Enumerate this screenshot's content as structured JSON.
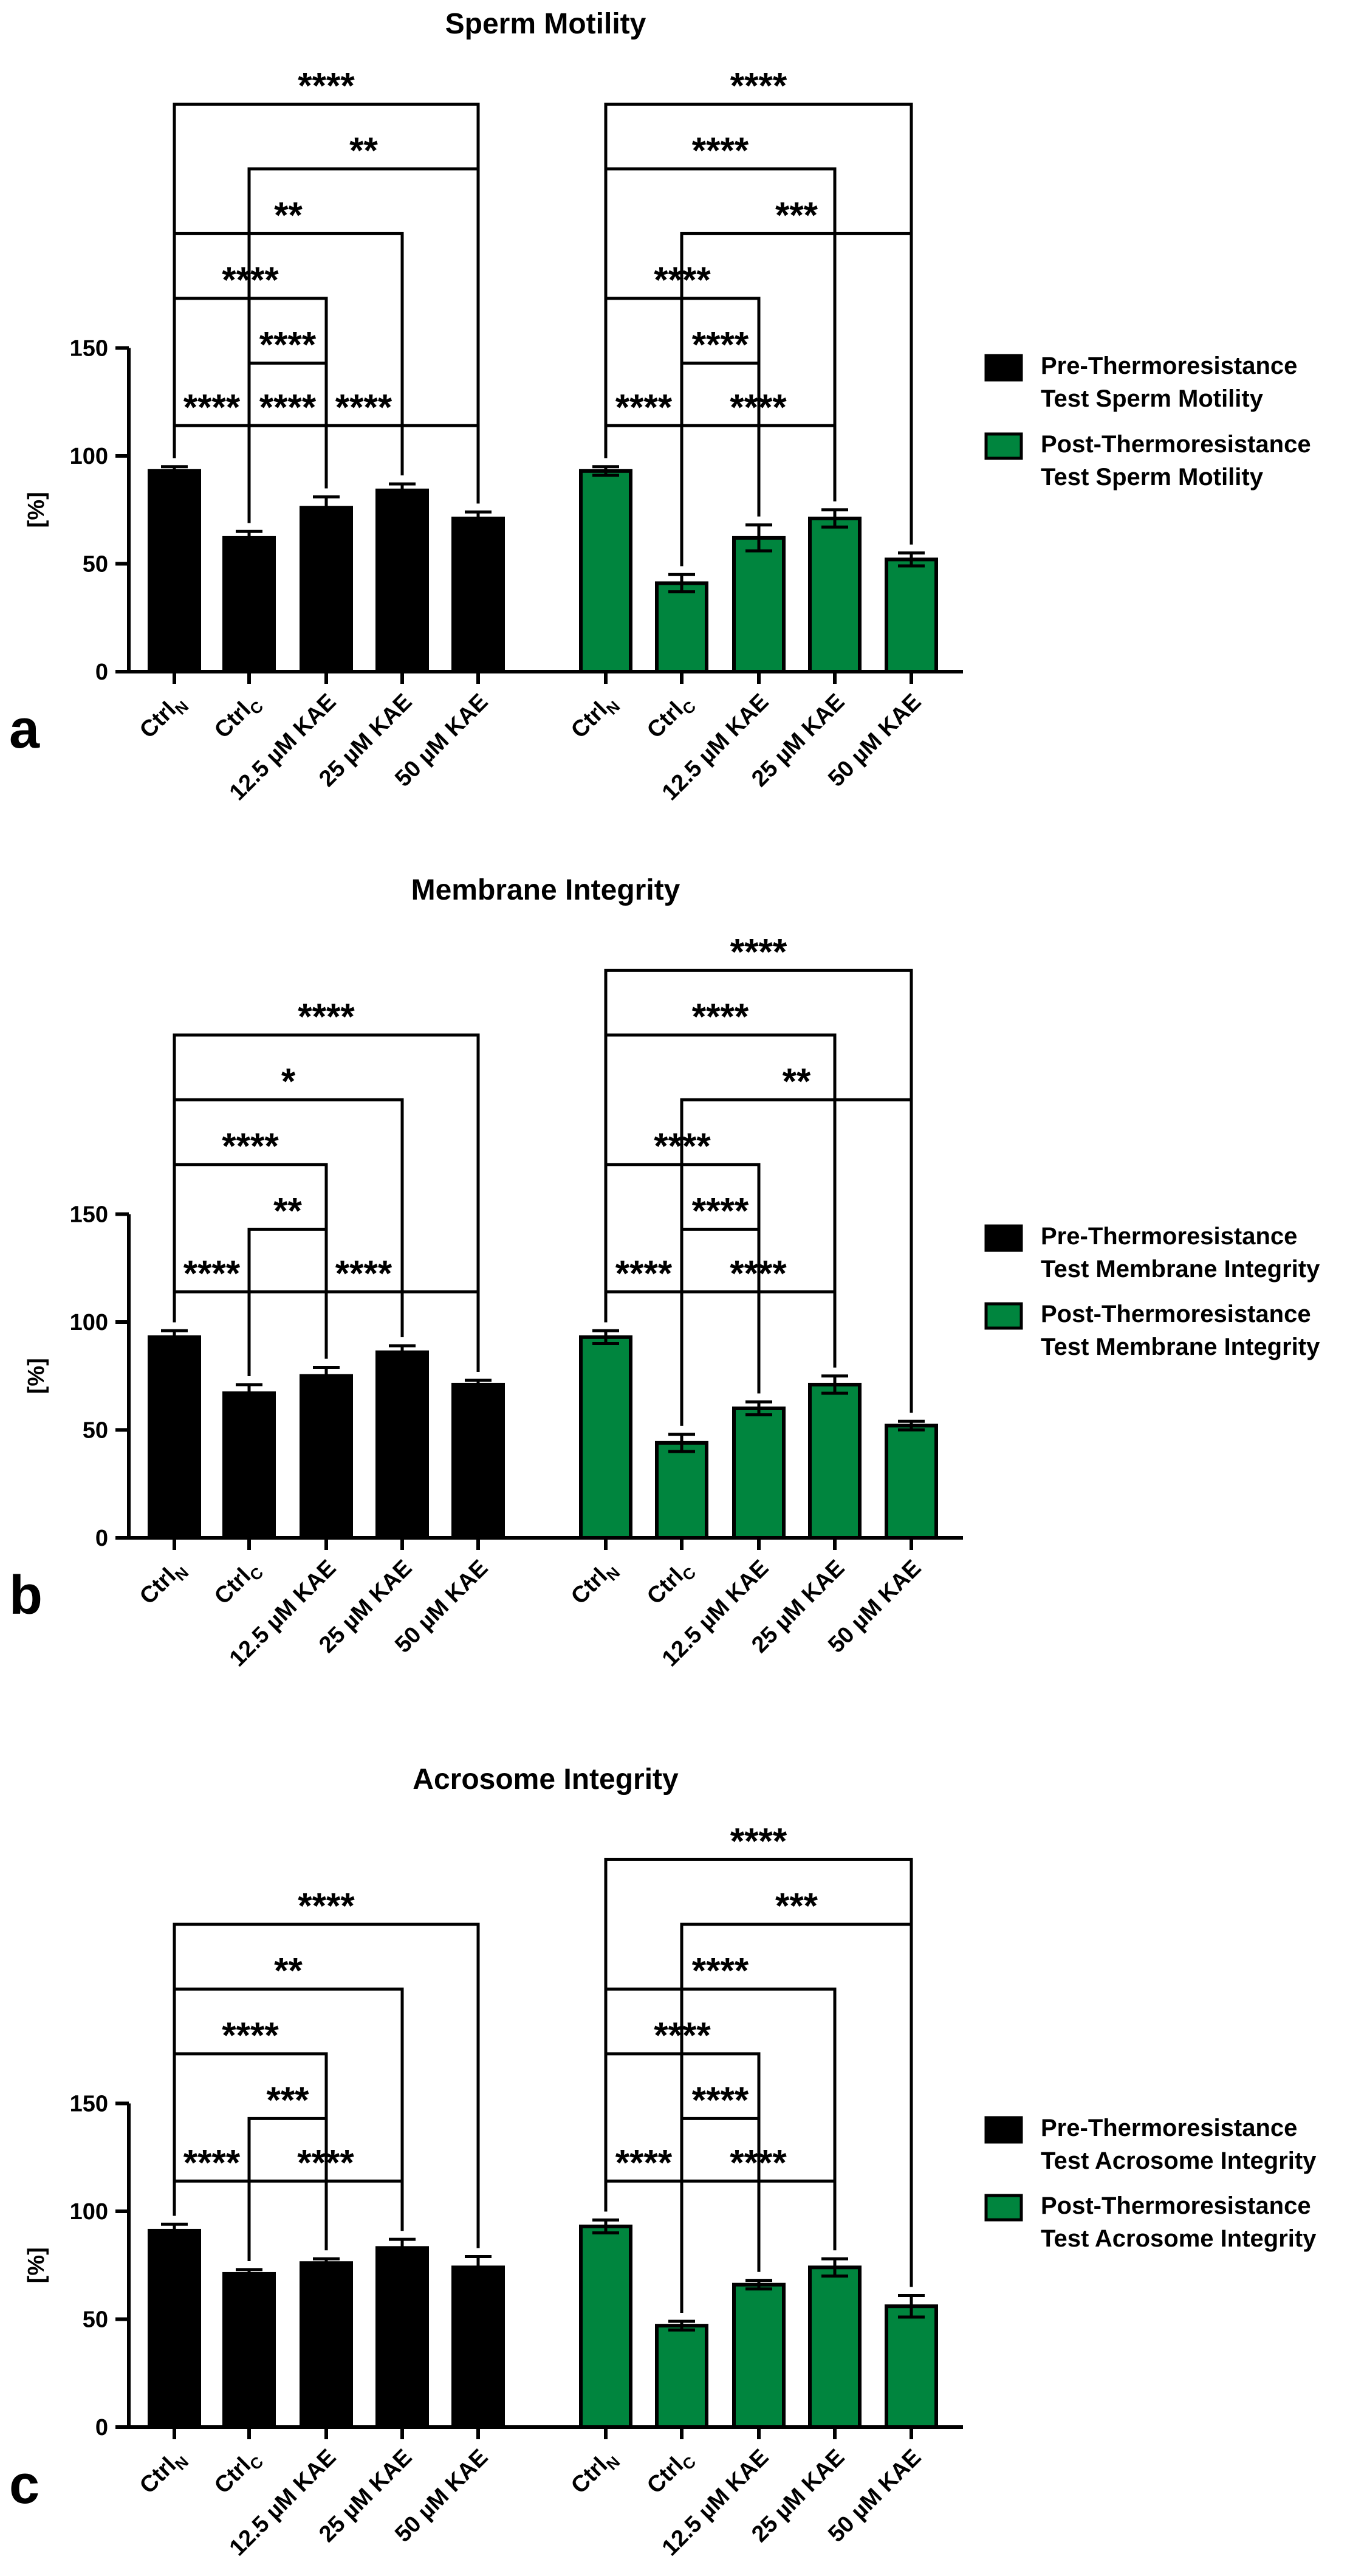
{
  "chart_data": [
    {
      "type": "bar",
      "panel_label": "a",
      "title": "Sperm Motility",
      "ylabel": "[%]",
      "ylim": [
        0,
        150
      ],
      "yticks": [
        "0",
        "50",
        "100",
        "150"
      ],
      "categories": [
        {
          "base": "Ctrl",
          "sub": "N"
        },
        {
          "base": "Ctrl",
          "sub": "C"
        },
        {
          "base": "12.5 µM KAE",
          "sub": ""
        },
        {
          "base": "25 µM KAE",
          "sub": ""
        },
        {
          "base": "50 µM KAE",
          "sub": ""
        }
      ],
      "series": [
        {
          "name": "Pre-Thermoresistance Test Sperm Motility",
          "legend_lines": [
            "Pre-Thermoresistance",
            "Test Sperm Motility"
          ],
          "color": "#000000",
          "values": [
            93,
            62,
            76,
            84,
            71
          ],
          "errors": [
            2,
            3,
            5,
            3,
            3
          ],
          "brackets": [
            {
              "from": 1,
              "to": 2,
              "y": 114,
              "label": "****"
            },
            {
              "from": 1,
              "to": 4,
              "y": 114,
              "label": "****"
            },
            {
              "from": 0,
              "to": 1,
              "y": 114,
              "label": "****"
            },
            {
              "from": 1,
              "to": 2,
              "y": 143,
              "label": "****"
            },
            {
              "from": 0,
              "to": 2,
              "y": 173,
              "label": "****"
            },
            {
              "from": 0,
              "to": 3,
              "y": 203,
              "label": "**"
            },
            {
              "from": 1,
              "to": 4,
              "y": 233,
              "label": "**"
            },
            {
              "from": 0,
              "to": 4,
              "y": 263,
              "label": "****"
            }
          ]
        },
        {
          "name": "Post-Thermoresistance Test Sperm Motility",
          "legend_lines": [
            "Post-Thermoresistance",
            "Test Sperm Motility"
          ],
          "color": "#00853e",
          "values": [
            93,
            41,
            62,
            71,
            52
          ],
          "errors": [
            2,
            4,
            6,
            4,
            3
          ],
          "brackets": [
            {
              "from": 0,
              "to": 1,
              "y": 114,
              "label": "****"
            },
            {
              "from": 1,
              "to": 3,
              "y": 114,
              "label": "****"
            },
            {
              "from": 1,
              "to": 2,
              "y": 143,
              "label": "****"
            },
            {
              "from": 0,
              "to": 2,
              "y": 173,
              "label": "****"
            },
            {
              "from": 1,
              "to": 4,
              "y": 203,
              "label": "***"
            },
            {
              "from": 0,
              "to": 3,
              "y": 233,
              "label": "****"
            },
            {
              "from": 0,
              "to": 4,
              "y": 263,
              "label": "****"
            }
          ]
        }
      ]
    },
    {
      "type": "bar",
      "panel_label": "b",
      "title": "Membrane Integrity",
      "ylabel": "[%]",
      "ylim": [
        0,
        150
      ],
      "yticks": [
        "0",
        "50",
        "100",
        "150"
      ],
      "categories": [
        {
          "base": "Ctrl",
          "sub": "N"
        },
        {
          "base": "Ctrl",
          "sub": "C"
        },
        {
          "base": "12.5 µM KAE",
          "sub": ""
        },
        {
          "base": "25 µM KAE",
          "sub": ""
        },
        {
          "base": "50 µM KAE",
          "sub": ""
        }
      ],
      "series": [
        {
          "name": "Pre-Thermoresistance Test Membrane Integrity",
          "legend_lines": [
            "Pre-Thermoresistance",
            "Test Membrane Integrity"
          ],
          "color": "#000000",
          "values": [
            93,
            67,
            75,
            86,
            71
          ],
          "errors": [
            3,
            4,
            4,
            3,
            2
          ],
          "brackets": [
            {
              "from": 0,
              "to": 1,
              "y": 114,
              "label": "****"
            },
            {
              "from": 1,
              "to": 4,
              "y": 114,
              "label": "****"
            },
            {
              "from": 1,
              "to": 2,
              "y": 143,
              "label": "**"
            },
            {
              "from": 0,
              "to": 2,
              "y": 173,
              "label": "****"
            },
            {
              "from": 0,
              "to": 3,
              "y": 203,
              "label": "*"
            },
            {
              "from": 0,
              "to": 4,
              "y": 233,
              "label": "****"
            }
          ]
        },
        {
          "name": "Post-Thermoresistance Test Membrane Integrity",
          "legend_lines": [
            "Post-Thermoresistance",
            "Test Membrane Integrity"
          ],
          "color": "#00853e",
          "values": [
            93,
            44,
            60,
            71,
            52
          ],
          "errors": [
            3,
            4,
            3,
            4,
            2
          ],
          "brackets": [
            {
              "from": 0,
              "to": 1,
              "y": 114,
              "label": "****"
            },
            {
              "from": 1,
              "to": 3,
              "y": 114,
              "label": "****"
            },
            {
              "from": 1,
              "to": 2,
              "y": 143,
              "label": "****"
            },
            {
              "from": 0,
              "to": 2,
              "y": 173,
              "label": "****"
            },
            {
              "from": 1,
              "to": 4,
              "y": 203,
              "label": "**"
            },
            {
              "from": 0,
              "to": 3,
              "y": 233,
              "label": "****"
            },
            {
              "from": 0,
              "to": 4,
              "y": 263,
              "label": "****"
            }
          ]
        }
      ]
    },
    {
      "type": "bar",
      "panel_label": "c",
      "title": "Acrosome Integrity",
      "ylabel": "[%]",
      "ylim": [
        0,
        150
      ],
      "yticks": [
        "0",
        "50",
        "100",
        "150"
      ],
      "categories": [
        {
          "base": "Ctrl",
          "sub": "N"
        },
        {
          "base": "Ctrl",
          "sub": "C"
        },
        {
          "base": "12.5 µM KAE",
          "sub": ""
        },
        {
          "base": "25 µM KAE",
          "sub": ""
        },
        {
          "base": "50 µM KAE",
          "sub": ""
        }
      ],
      "series": [
        {
          "name": "Pre-Thermoresistance Test Acrosome Integrity",
          "legend_lines": [
            "Pre-Thermoresistance",
            "Test Acrosome Integrity"
          ],
          "color": "#000000",
          "values": [
            91,
            71,
            76,
            83,
            74
          ],
          "errors": [
            3,
            2,
            2,
            4,
            5
          ],
          "brackets": [
            {
              "from": 0,
              "to": 1,
              "y": 114,
              "label": "****"
            },
            {
              "from": 1,
              "to": 3,
              "y": 114,
              "label": "****"
            },
            {
              "from": 1,
              "to": 2,
              "y": 143,
              "label": "***"
            },
            {
              "from": 0,
              "to": 2,
              "y": 173,
              "label": "****"
            },
            {
              "from": 0,
              "to": 3,
              "y": 203,
              "label": "**"
            },
            {
              "from": 0,
              "to": 4,
              "y": 233,
              "label": "****"
            }
          ]
        },
        {
          "name": "Post-Thermoresistance Test Acrosome Integrity",
          "legend_lines": [
            "Post-Thermoresistance",
            "Test Acrosome Integrity"
          ],
          "color": "#00853e",
          "values": [
            93,
            47,
            66,
            74,
            56
          ],
          "errors": [
            3,
            2,
            2,
            4,
            5
          ],
          "brackets": [
            {
              "from": 0,
              "to": 1,
              "y": 114,
              "label": "****"
            },
            {
              "from": 1,
              "to": 3,
              "y": 114,
              "label": "****"
            },
            {
              "from": 1,
              "to": 2,
              "y": 143,
              "label": "****"
            },
            {
              "from": 0,
              "to": 2,
              "y": 173,
              "label": "****"
            },
            {
              "from": 0,
              "to": 3,
              "y": 203,
              "label": "****"
            },
            {
              "from": 1,
              "to": 4,
              "y": 233,
              "label": "***"
            },
            {
              "from": 0,
              "to": 4,
              "y": 263,
              "label": "****"
            }
          ]
        }
      ]
    }
  ]
}
